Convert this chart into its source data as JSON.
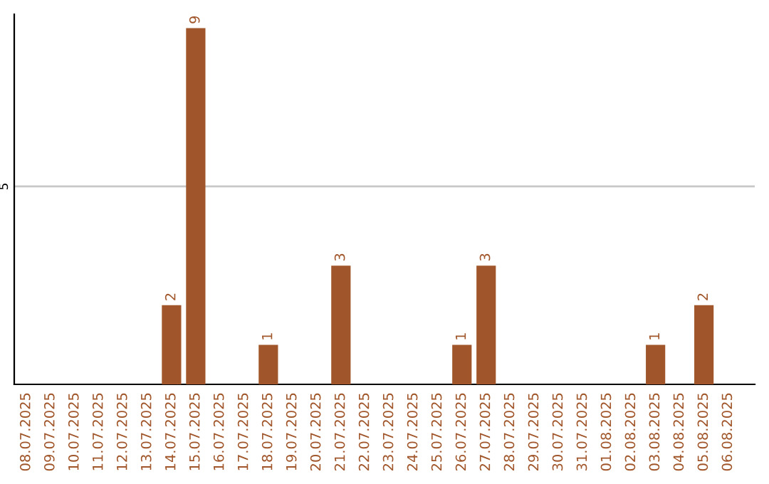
{
  "chart_data": {
    "type": "bar",
    "categories": [
      "08.07.2025",
      "09.07.2025",
      "10.07.2025",
      "11.07.2025",
      "12.07.2025",
      "13.07.2025",
      "14.07.2025",
      "15.07.2025",
      "16.07.2025",
      "17.07.2025",
      "18.07.2025",
      "19.07.2025",
      "20.07.2025",
      "21.07.2025",
      "22.07.2025",
      "23.07.2025",
      "24.07.2025",
      "25.07.2025",
      "26.07.2025",
      "27.07.2025",
      "28.07.2025",
      "29.07.2025",
      "30.07.2025",
      "31.07.2025",
      "01.08.2025",
      "02.08.2025",
      "03.08.2025",
      "04.08.2025",
      "05.08.2025",
      "06.08.2025"
    ],
    "values": [
      0,
      0,
      0,
      0,
      0,
      0,
      2,
      9,
      0,
      0,
      1,
      0,
      0,
      3,
      0,
      0,
      0,
      0,
      1,
      3,
      0,
      0,
      0,
      0,
      0,
      0,
      1,
      0,
      2,
      0
    ],
    "value_labels": [
      null,
      null,
      null,
      null,
      null,
      null,
      "2",
      "9",
      null,
      null,
      "1",
      null,
      null,
      "3",
      null,
      null,
      null,
      null,
      "1",
      "3",
      null,
      null,
      null,
      null,
      null,
      null,
      "1",
      null,
      "2",
      null
    ],
    "color": "#a0562a",
    "ylim": [
      0,
      9.35
    ],
    "yticks": [
      5
    ],
    "grid": "y",
    "legend": false
  }
}
